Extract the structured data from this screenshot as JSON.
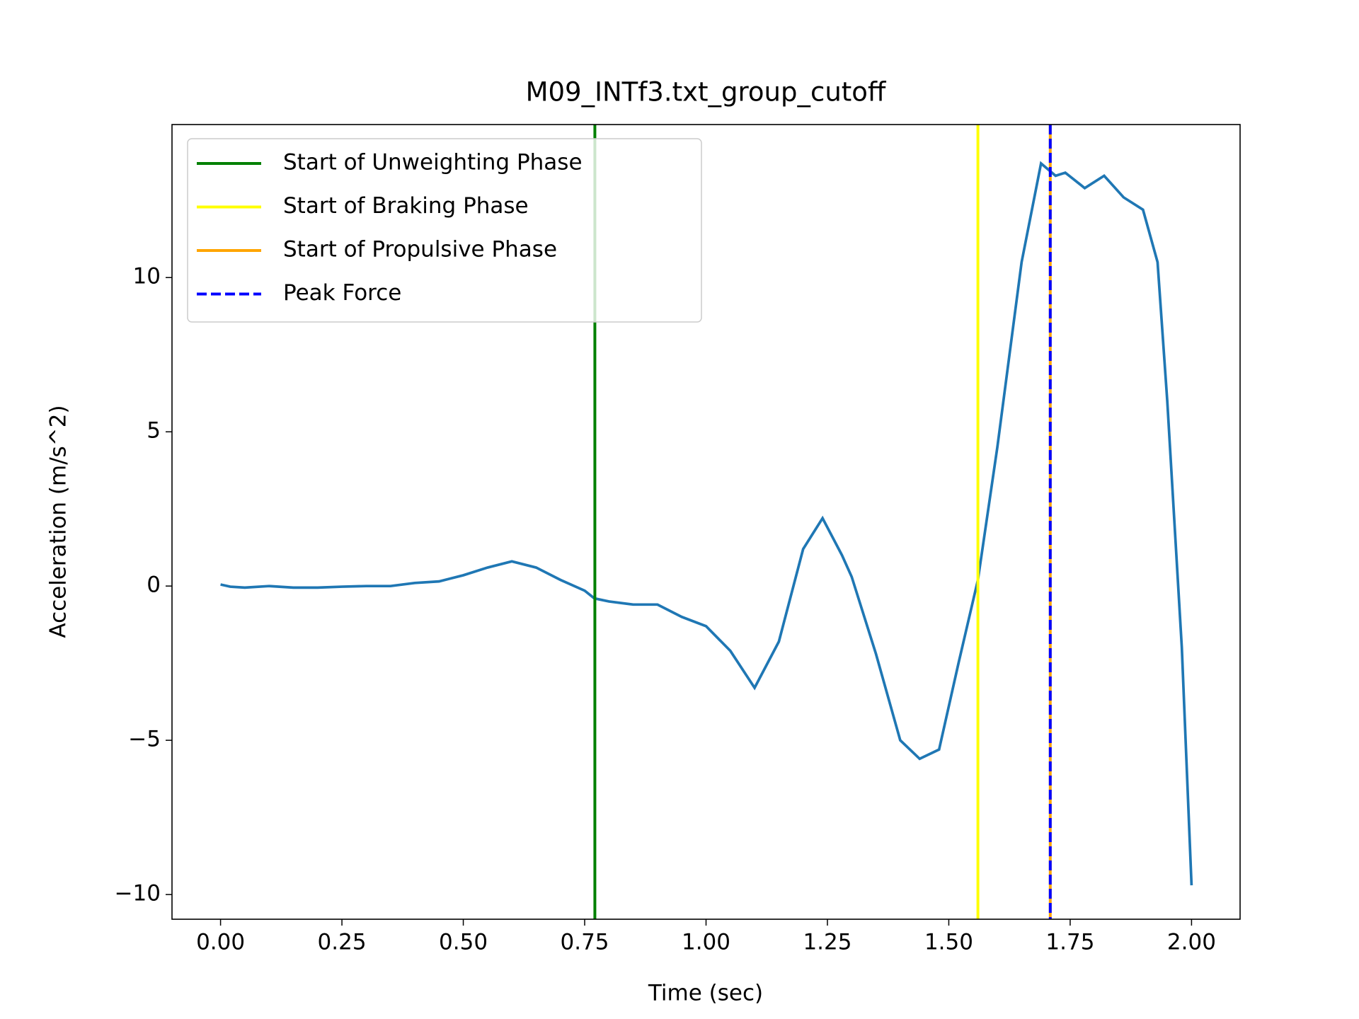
{
  "chart_data": {
    "type": "line",
    "title": "M09_INTf3.txt_group_cutoff",
    "xlabel": "Time (sec)",
    "ylabel": "Acceleration (m/s^2)",
    "xlim": [
      -0.1,
      2.1
    ],
    "ylim": [
      -10.8,
      14.96
    ],
    "xticks": [
      {
        "value": 0,
        "label": "0.00"
      },
      {
        "value": 0.25,
        "label": "0.25"
      },
      {
        "value": 0.5,
        "label": "0.50"
      },
      {
        "value": 0.75,
        "label": "0.75"
      },
      {
        "value": 1,
        "label": "1.00"
      },
      {
        "value": 1.25,
        "label": "1.25"
      },
      {
        "value": 1.5,
        "label": "1.50"
      },
      {
        "value": 1.75,
        "label": "1.75"
      },
      {
        "value": 2,
        "label": "2.00"
      }
    ],
    "yticks": [
      {
        "value": -10,
        "label": "−10"
      },
      {
        "value": -5,
        "label": "−5"
      },
      0,
      5,
      10
    ],
    "legend": "upper left",
    "series": [
      {
        "color": "#1f77b4",
        "x": [
          0,
          0.02,
          0.05,
          0.1,
          0.15,
          0.2,
          0.25,
          0.3,
          0.35,
          0.4,
          0.45,
          0.5,
          0.55,
          0.6,
          0.65,
          0.7,
          0.75,
          0.77,
          0.8,
          0.85,
          0.9,
          0.95,
          1.0,
          1.05,
          1.1,
          1.15,
          1.2,
          1.24,
          1.28,
          1.3,
          1.35,
          1.4,
          1.44,
          1.48,
          1.52,
          1.56,
          1.6,
          1.65,
          1.69,
          1.72,
          1.74,
          1.78,
          1.82,
          1.86,
          1.9,
          1.93,
          1.95,
          1.98,
          2.0
        ],
        "values": [
          0.05,
          -0.02,
          -0.05,
          0.0,
          -0.05,
          -0.05,
          -0.02,
          0.0,
          0.0,
          0.1,
          0.15,
          0.35,
          0.6,
          0.8,
          0.6,
          0.2,
          -0.15,
          -0.4,
          -0.5,
          -0.6,
          -0.6,
          -1.0,
          -1.3,
          -2.1,
          -3.3,
          -1.8,
          1.2,
          2.2,
          1.0,
          0.3,
          -2.2,
          -5.0,
          -5.6,
          -5.3,
          -2.5,
          0.2,
          4.5,
          10.5,
          13.7,
          13.3,
          13.4,
          12.9,
          13.3,
          12.6,
          12.2,
          10.5,
          6.0,
          -2.0,
          -9.7
        ]
      }
    ],
    "vlines": [
      {
        "name": "Start of Unweighting Phase",
        "color": "green",
        "x": 0.771,
        "style": "solid"
      },
      {
        "name": "Start of Braking Phase",
        "color": "yellow",
        "x": 1.56,
        "style": "solid"
      },
      {
        "name": "Start of Propulsive Phase",
        "color": "orange",
        "x": 1.709,
        "style": "solid"
      },
      {
        "name": "Peak Force",
        "color": "blue",
        "x": 1.709,
        "style": "dashed"
      }
    ]
  }
}
